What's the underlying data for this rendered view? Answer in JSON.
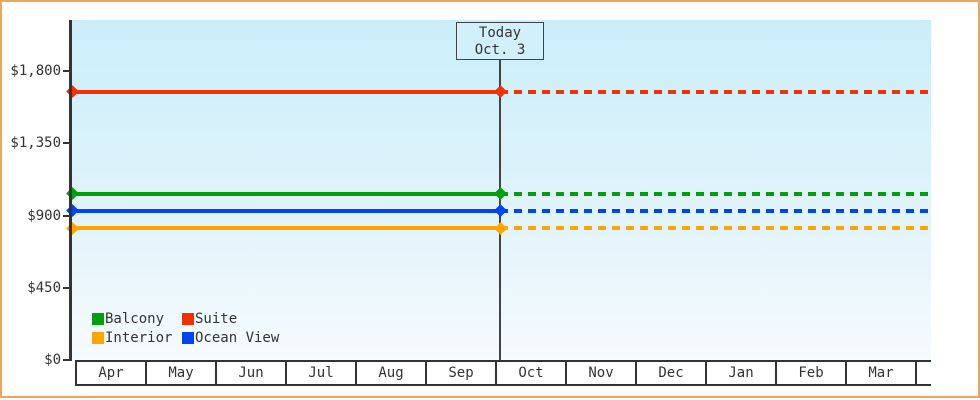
{
  "chart_data": {
    "type": "line",
    "title": "",
    "xlabel": "",
    "ylabel": "",
    "ylim": [
      0,
      1800
    ],
    "grid": false,
    "x_categories": [
      "Apr",
      "May",
      "Jun",
      "Jul",
      "Aug",
      "Sep",
      "Oct",
      "Nov",
      "Dec",
      "Jan",
      "Feb",
      "Mar"
    ],
    "y_ticks": [
      {
        "value": 0,
        "label": "$0"
      },
      {
        "value": 450,
        "label": "$450"
      },
      {
        "value": 900,
        "label": "$900"
      },
      {
        "value": 1350,
        "label": "$1,350"
      },
      {
        "value": 1800,
        "label": "$1,800"
      }
    ],
    "today": {
      "line1": "Today",
      "line2": "Oct. 3",
      "month_index": 6,
      "month_fraction": 0.07
    },
    "series": [
      {
        "name": "Suite",
        "color": "#f23000",
        "value": 1670,
        "style_before_today": "solid",
        "style_after_today": "dashed"
      },
      {
        "name": "Balcony",
        "color": "#00a00a",
        "value": 1035,
        "style_before_today": "solid",
        "style_after_today": "dashed"
      },
      {
        "name": "Ocean View",
        "color": "#0043f0",
        "value": 930,
        "style_before_today": "solid",
        "style_after_today": "dashed"
      },
      {
        "name": "Interior",
        "color": "#ffa500",
        "value": 820,
        "style_before_today": "solid",
        "style_after_today": "dashed"
      }
    ],
    "legend": {
      "position": "bottom-left",
      "rows": [
        [
          "Balcony",
          "Suite"
        ],
        [
          "Interior",
          "Ocean View"
        ]
      ]
    },
    "style": {
      "frame_border_color": "#eda75c",
      "plot_bg_top": "#c9eefa",
      "plot_bg_bottom": "#f5fbfe",
      "axis_color": "#333333",
      "today_color": "#444444",
      "today_box_bg": "#d2f0fb"
    }
  }
}
